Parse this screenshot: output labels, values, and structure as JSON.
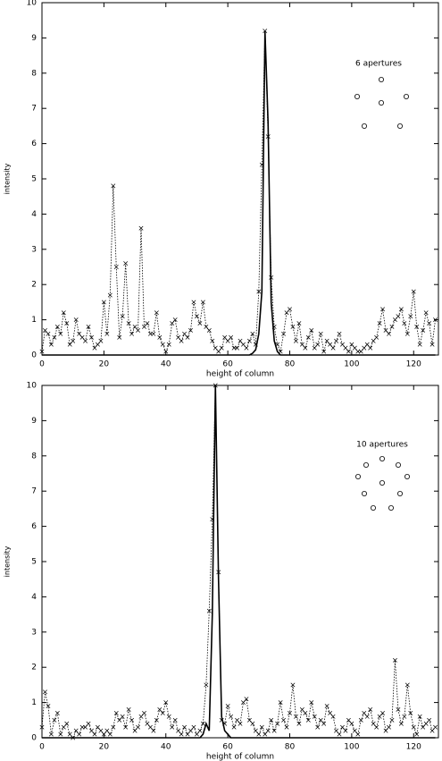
{
  "chart_data": [
    {
      "type": "line",
      "xlabel": "height of column",
      "ylabel": "intensity",
      "annotation": "6 apertures",
      "xlim": [
        0,
        128
      ],
      "ylim": [
        0,
        10
      ],
      "xticks": [
        0,
        20,
        40,
        60,
        80,
        100,
        120
      ],
      "yticks": [
        0,
        1,
        2,
        3,
        4,
        5,
        6,
        7,
        8,
        9,
        10
      ],
      "x": [
        0,
        1,
        2,
        3,
        4,
        5,
        6,
        7,
        8,
        9,
        10,
        11,
        12,
        13,
        14,
        15,
        16,
        17,
        18,
        19,
        20,
        21,
        22,
        23,
        24,
        25,
        26,
        27,
        28,
        29,
        30,
        31,
        32,
        33,
        34,
        35,
        36,
        37,
        38,
        39,
        40,
        41,
        42,
        43,
        44,
        45,
        46,
        47,
        48,
        49,
        50,
        51,
        52,
        53,
        54,
        55,
        56,
        57,
        58,
        59,
        60,
        61,
        62,
        63,
        64,
        65,
        66,
        67,
        68,
        69,
        70,
        71,
        72,
        73,
        74,
        75,
        76,
        77,
        78,
        79,
        80,
        81,
        82,
        83,
        84,
        85,
        86,
        87,
        88,
        89,
        90,
        91,
        92,
        93,
        94,
        95,
        96,
        97,
        98,
        99,
        100,
        101,
        102,
        103,
        104,
        105,
        106,
        107,
        108,
        109,
        110,
        111,
        112,
        113,
        114,
        115,
        116,
        117,
        118,
        119,
        120,
        121,
        122,
        123,
        124,
        125,
        126,
        127
      ],
      "series": [
        {
          "color": "#000000",
          "dash": true,
          "marker": "x",
          "values": [
            0.1,
            0.7,
            0.6,
            0.3,
            0.5,
            0.8,
            0.6,
            1.2,
            0.9,
            0.3,
            0.4,
            1.0,
            0.6,
            0.5,
            0.4,
            0.8,
            0.5,
            0.2,
            0.3,
            0.4,
            1.5,
            0.6,
            1.7,
            4.8,
            2.5,
            0.5,
            1.1,
            2.6,
            0.9,
            0.6,
            0.8,
            0.7,
            3.6,
            0.8,
            0.9,
            0.6,
            0.6,
            1.2,
            0.5,
            0.3,
            0.1,
            0.3,
            0.9,
            1.0,
            0.5,
            0.4,
            0.6,
            0.5,
            0.7,
            1.5,
            1.1,
            0.9,
            1.5,
            0.8,
            0.7,
            0.4,
            0.2,
            0.1,
            0.2,
            0.5,
            0.4,
            0.5,
            0.2,
            0.2,
            0.4,
            0.3,
            0.2,
            0.4,
            0.6,
            0.3,
            1.8,
            5.4,
            9.2,
            6.2,
            2.2,
            0.8,
            0.3,
            0.1,
            0.6,
            1.2,
            1.3,
            0.8,
            0.4,
            0.9,
            0.3,
            0.2,
            0.5,
            0.7,
            0.2,
            0.3,
            0.6,
            0.1,
            0.4,
            0.3,
            0.2,
            0.4,
            0.6,
            0.3,
            0.2,
            0.1,
            0.3,
            0.2,
            0.1,
            0.1,
            0.2,
            0.3,
            0.2,
            0.4,
            0.5,
            0.9,
            1.3,
            0.7,
            0.6,
            0.8,
            1.0,
            1.1,
            1.3,
            0.9,
            0.6,
            1.1,
            1.8,
            0.8,
            0.3,
            0.7,
            1.2,
            0.9,
            0.3,
            1.0
          ]
        },
        {
          "color": "#000000",
          "dash": false,
          "values": [
            0,
            0,
            0,
            0,
            0,
            0,
            0,
            0,
            0,
            0,
            0,
            0,
            0,
            0,
            0,
            0,
            0,
            0,
            0,
            0,
            0,
            0,
            0,
            0,
            0,
            0,
            0,
            0,
            0,
            0,
            0,
            0,
            0,
            0,
            0,
            0,
            0,
            0,
            0,
            0,
            0,
            0,
            0,
            0,
            0,
            0,
            0,
            0,
            0,
            0,
            0,
            0,
            0,
            0,
            0,
            0,
            0,
            0,
            0,
            0,
            0,
            0,
            0,
            0,
            0,
            0,
            0,
            0,
            0.05,
            0.15,
            0.6,
            1.8,
            9.2,
            6.6,
            1.5,
            0.4,
            0.1,
            0,
            0,
            0,
            0,
            0,
            0,
            0,
            0,
            0,
            0,
            0,
            0,
            0,
            0,
            0,
            0,
            0,
            0,
            0,
            0,
            0,
            0,
            0,
            0,
            0,
            0,
            0,
            0,
            0,
            0,
            0,
            0,
            0,
            0,
            0,
            0,
            0,
            0,
            0,
            0,
            0,
            0,
            0,
            0,
            0,
            0,
            0,
            0,
            0,
            0,
            0
          ]
        }
      ]
    },
    {
      "type": "line",
      "xlabel": "height of column",
      "ylabel": "intensity",
      "annotation": "10 apertures",
      "xlim": [
        0,
        128
      ],
      "ylim": [
        0,
        10
      ],
      "xticks": [
        0,
        20,
        40,
        60,
        80,
        100,
        120
      ],
      "yticks": [
        0,
        1,
        2,
        3,
        4,
        5,
        6,
        7,
        8,
        9,
        10
      ],
      "x": [
        0,
        1,
        2,
        3,
        4,
        5,
        6,
        7,
        8,
        9,
        10,
        11,
        12,
        13,
        14,
        15,
        16,
        17,
        18,
        19,
        20,
        21,
        22,
        23,
        24,
        25,
        26,
        27,
        28,
        29,
        30,
        31,
        32,
        33,
        34,
        35,
        36,
        37,
        38,
        39,
        40,
        41,
        42,
        43,
        44,
        45,
        46,
        47,
        48,
        49,
        50,
        51,
        52,
        53,
        54,
        55,
        56,
        57,
        58,
        59,
        60,
        61,
        62,
        63,
        64,
        65,
        66,
        67,
        68,
        69,
        70,
        71,
        72,
        73,
        74,
        75,
        76,
        77,
        78,
        79,
        80,
        81,
        82,
        83,
        84,
        85,
        86,
        87,
        88,
        89,
        90,
        91,
        92,
        93,
        94,
        95,
        96,
        97,
        98,
        99,
        100,
        101,
        102,
        103,
        104,
        105,
        106,
        107,
        108,
        109,
        110,
        111,
        112,
        113,
        114,
        115,
        116,
        117,
        118,
        119,
        120,
        121,
        122,
        123,
        124,
        125,
        126,
        127
      ],
      "series": [
        {
          "color": "#000000",
          "dash": true,
          "marker": "x",
          "values": [
            0.3,
            1.3,
            0.9,
            0.1,
            0.5,
            0.7,
            0.1,
            0.3,
            0.4,
            0.1,
            0,
            0.2,
            0.1,
            0.3,
            0.3,
            0.4,
            0.2,
            0.1,
            0.3,
            0.2,
            0.1,
            0.2,
            0.1,
            0.3,
            0.7,
            0.5,
            0.6,
            0.3,
            0.8,
            0.5,
            0.2,
            0.3,
            0.6,
            0.7,
            0.4,
            0.3,
            0.2,
            0.5,
            0.8,
            0.7,
            1.0,
            0.6,
            0.3,
            0.5,
            0.2,
            0.1,
            0.3,
            0.1,
            0.2,
            0.3,
            0.1,
            0.2,
            0.4,
            1.5,
            3.6,
            6.2,
            10,
            4.7,
            0.5,
            0.4,
            0.9,
            0.6,
            0.3,
            0.5,
            0.4,
            1.0,
            1.1,
            0.5,
            0.4,
            0.2,
            0.1,
            0.3,
            0.1,
            0.2,
            0.5,
            0.2,
            0.4,
            1.0,
            0.5,
            0.3,
            0.7,
            1.5,
            0.6,
            0.4,
            0.8,
            0.7,
            0.5,
            1.0,
            0.6,
            0.3,
            0.5,
            0.4,
            0.9,
            0.7,
            0.6,
            0.2,
            0.1,
            0.3,
            0.2,
            0.5,
            0.4,
            0.2,
            0.1,
            0.5,
            0.7,
            0.6,
            0.8,
            0.4,
            0.3,
            0.6,
            0.7,
            0.2,
            0.3,
            0.5,
            2.2,
            0.8,
            0.4,
            0.6,
            1.5,
            0.7,
            0.3,
            0.1,
            0.6,
            0.3,
            0.4,
            0.5,
            0.2,
            0.3
          ]
        },
        {
          "color": "#000000",
          "dash": false,
          "values": [
            0,
            0,
            0,
            0,
            0,
            0,
            0,
            0,
            0,
            0,
            0,
            0,
            0,
            0,
            0,
            0,
            0,
            0,
            0,
            0,
            0,
            0,
            0,
            0,
            0,
            0,
            0,
            0,
            0,
            0,
            0,
            0,
            0,
            0,
            0,
            0,
            0,
            0,
            0,
            0,
            0,
            0,
            0,
            0,
            0,
            0,
            0,
            0,
            0,
            0,
            0,
            0,
            0.1,
            0.4,
            0.2,
            3.5,
            10,
            4.5,
            0.6,
            0.2,
            0.1,
            0,
            0,
            0,
            0,
            0,
            0,
            0,
            0,
            0,
            0,
            0,
            0,
            0,
            0,
            0,
            0,
            0,
            0,
            0,
            0,
            0,
            0,
            0,
            0,
            0,
            0,
            0,
            0,
            0,
            0,
            0,
            0,
            0,
            0,
            0,
            0,
            0,
            0,
            0,
            0,
            0,
            0,
            0,
            0,
            0,
            0,
            0,
            0,
            0,
            0,
            0,
            0,
            0,
            0,
            0,
            0,
            0,
            0,
            0,
            0,
            0,
            0,
            0,
            0,
            0,
            0,
            0
          ]
        }
      ]
    }
  ]
}
